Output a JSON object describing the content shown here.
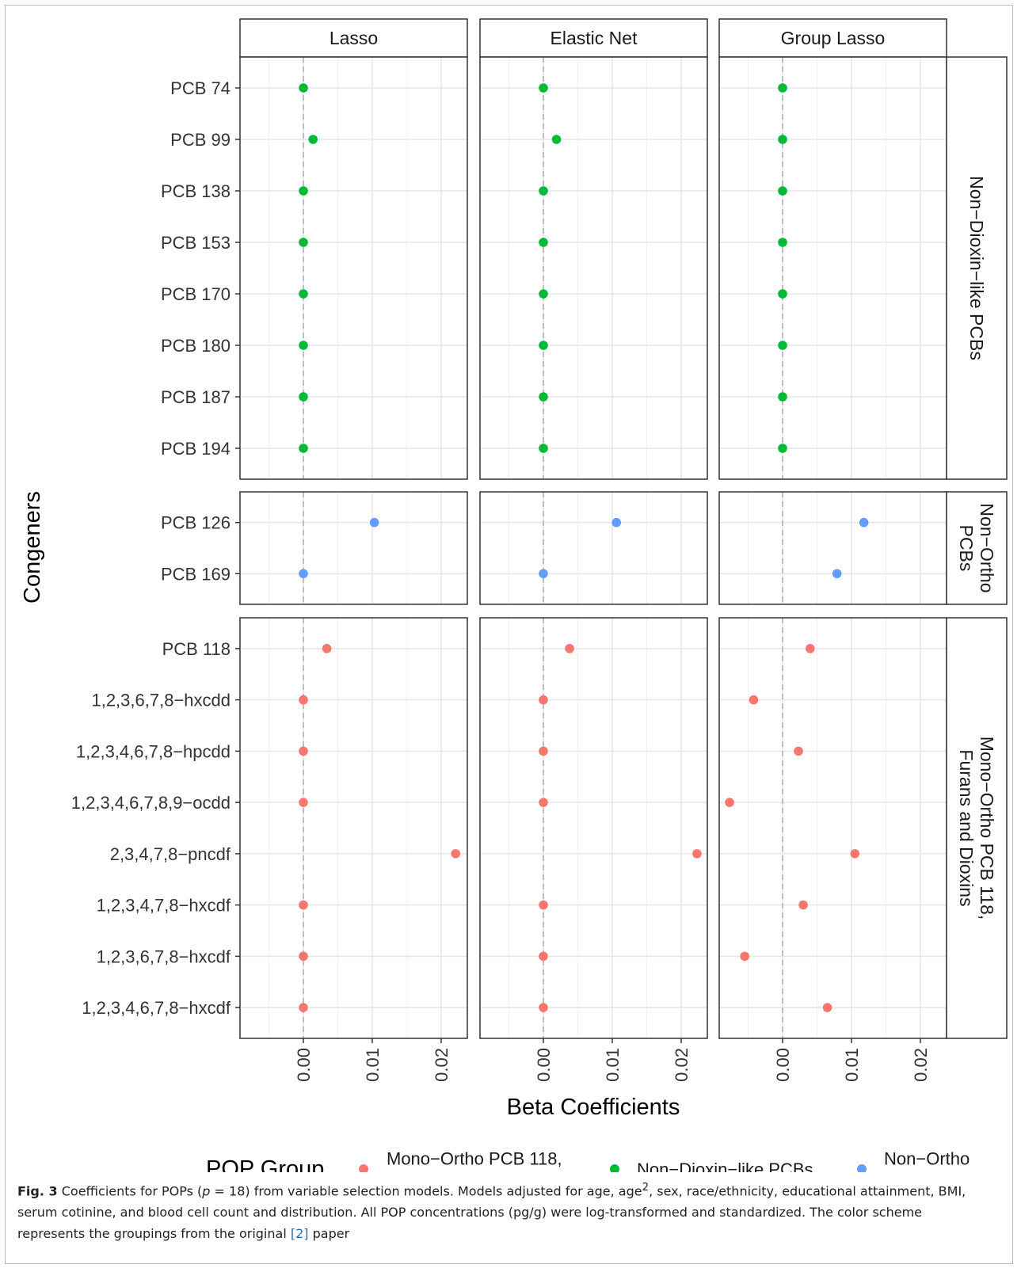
{
  "chart_data": {
    "type": "scatter",
    "xlabel": "Beta Coefficients",
    "ylabel": "Congeners",
    "xlim": [
      -0.0092,
      0.0238
    ],
    "x_ticks": [
      0.0,
      0.01,
      0.02
    ],
    "x_tick_labels": [
      "0.00",
      "0.01",
      "0.02"
    ],
    "x_minor_ticks": [
      -0.005,
      0.005,
      0.015
    ],
    "reference_line_x": 0,
    "grid": true,
    "columns": [
      "Lasso",
      "Elastic Net",
      "Group Lasso"
    ],
    "legend": {
      "title": "POP Group",
      "position": "bottom",
      "entries": [
        {
          "label": [
            "Mono−Ortho PCB 118,",
            "Furans and Dioxins"
          ],
          "color": "#F8766D"
        },
        {
          "label": [
            "Non−Dioxin−like PCBs"
          ],
          "color": "#00BA38"
        },
        {
          "label": [
            "Non−Ortho",
            "PCBs"
          ],
          "color": "#619CFF"
        }
      ]
    },
    "rows": [
      {
        "group_label": [
          "Non−Dioxin−like PCBs"
        ],
        "color": "#00BA38",
        "congeners": [
          "PCB 74",
          "PCB 99",
          "PCB 138",
          "PCB 153",
          "PCB 170",
          "PCB 180",
          "PCB 187",
          "PCB 194"
        ],
        "values": {
          "Lasso": [
            0,
            0.0014,
            0,
            0,
            0,
            0,
            0,
            0
          ],
          "Elastic Net": [
            0,
            0.0019,
            0,
            0,
            0,
            0,
            0,
            0
          ],
          "Group Lasso": [
            0,
            0,
            0,
            0,
            0,
            0,
            0,
            0
          ]
        }
      },
      {
        "group_label": [
          "Non−Ortho",
          "PCBs"
        ],
        "color": "#619CFF",
        "congeners": [
          "PCB 126",
          "PCB 169"
        ],
        "values": {
          "Lasso": [
            0.0103,
            0
          ],
          "Elastic Net": [
            0.0106,
            0
          ],
          "Group Lasso": [
            0.0118,
            0.0079
          ]
        }
      },
      {
        "group_label": [
          "Mono−Ortho PCB 118,",
          "Furans and Dioxins"
        ],
        "color": "#F8766D",
        "congeners": [
          "PCB 118",
          "1,2,3,6,7,8−hxcdd",
          "1,2,3,4,6,7,8−hpcdd",
          "1,2,3,4,6,7,8,9−ocdd",
          "2,3,4,7,8−pncdf",
          "1,2,3,4,7,8−hxcdf",
          "1,2,3,6,7,8−hxcdf",
          "1,2,3,4,6,7,8−hxcdf"
        ],
        "values": {
          "Lasso": [
            0.0034,
            0,
            0,
            0,
            0.0221,
            0,
            0,
            0
          ],
          "Elastic Net": [
            0.0038,
            0,
            0,
            0,
            0.0223,
            0,
            0,
            0
          ],
          "Group Lasso": [
            0.004,
            -0.0042,
            0.0023,
            -0.0077,
            0.0105,
            0.003,
            -0.0055,
            0.0065
          ]
        }
      }
    ]
  },
  "caption": {
    "fig_label": "Fig. 3",
    "line1": " Coefficients for POPs (",
    "p_symbol": "p",
    "line1b": " = 18) from variable selection models. Models adjusted for age, age",
    "sup": "2",
    "line1c": ", sex, race/ethnicity, educational attainment, BMI,",
    "line2": "serum cotinine, and blood cell count and distribution. All POP concentrations (pg/g) were log-transformed and standardized. The color scheme",
    "line3a": "represents the groupings from the original ",
    "ref": "[2]",
    "line3b": " paper"
  }
}
